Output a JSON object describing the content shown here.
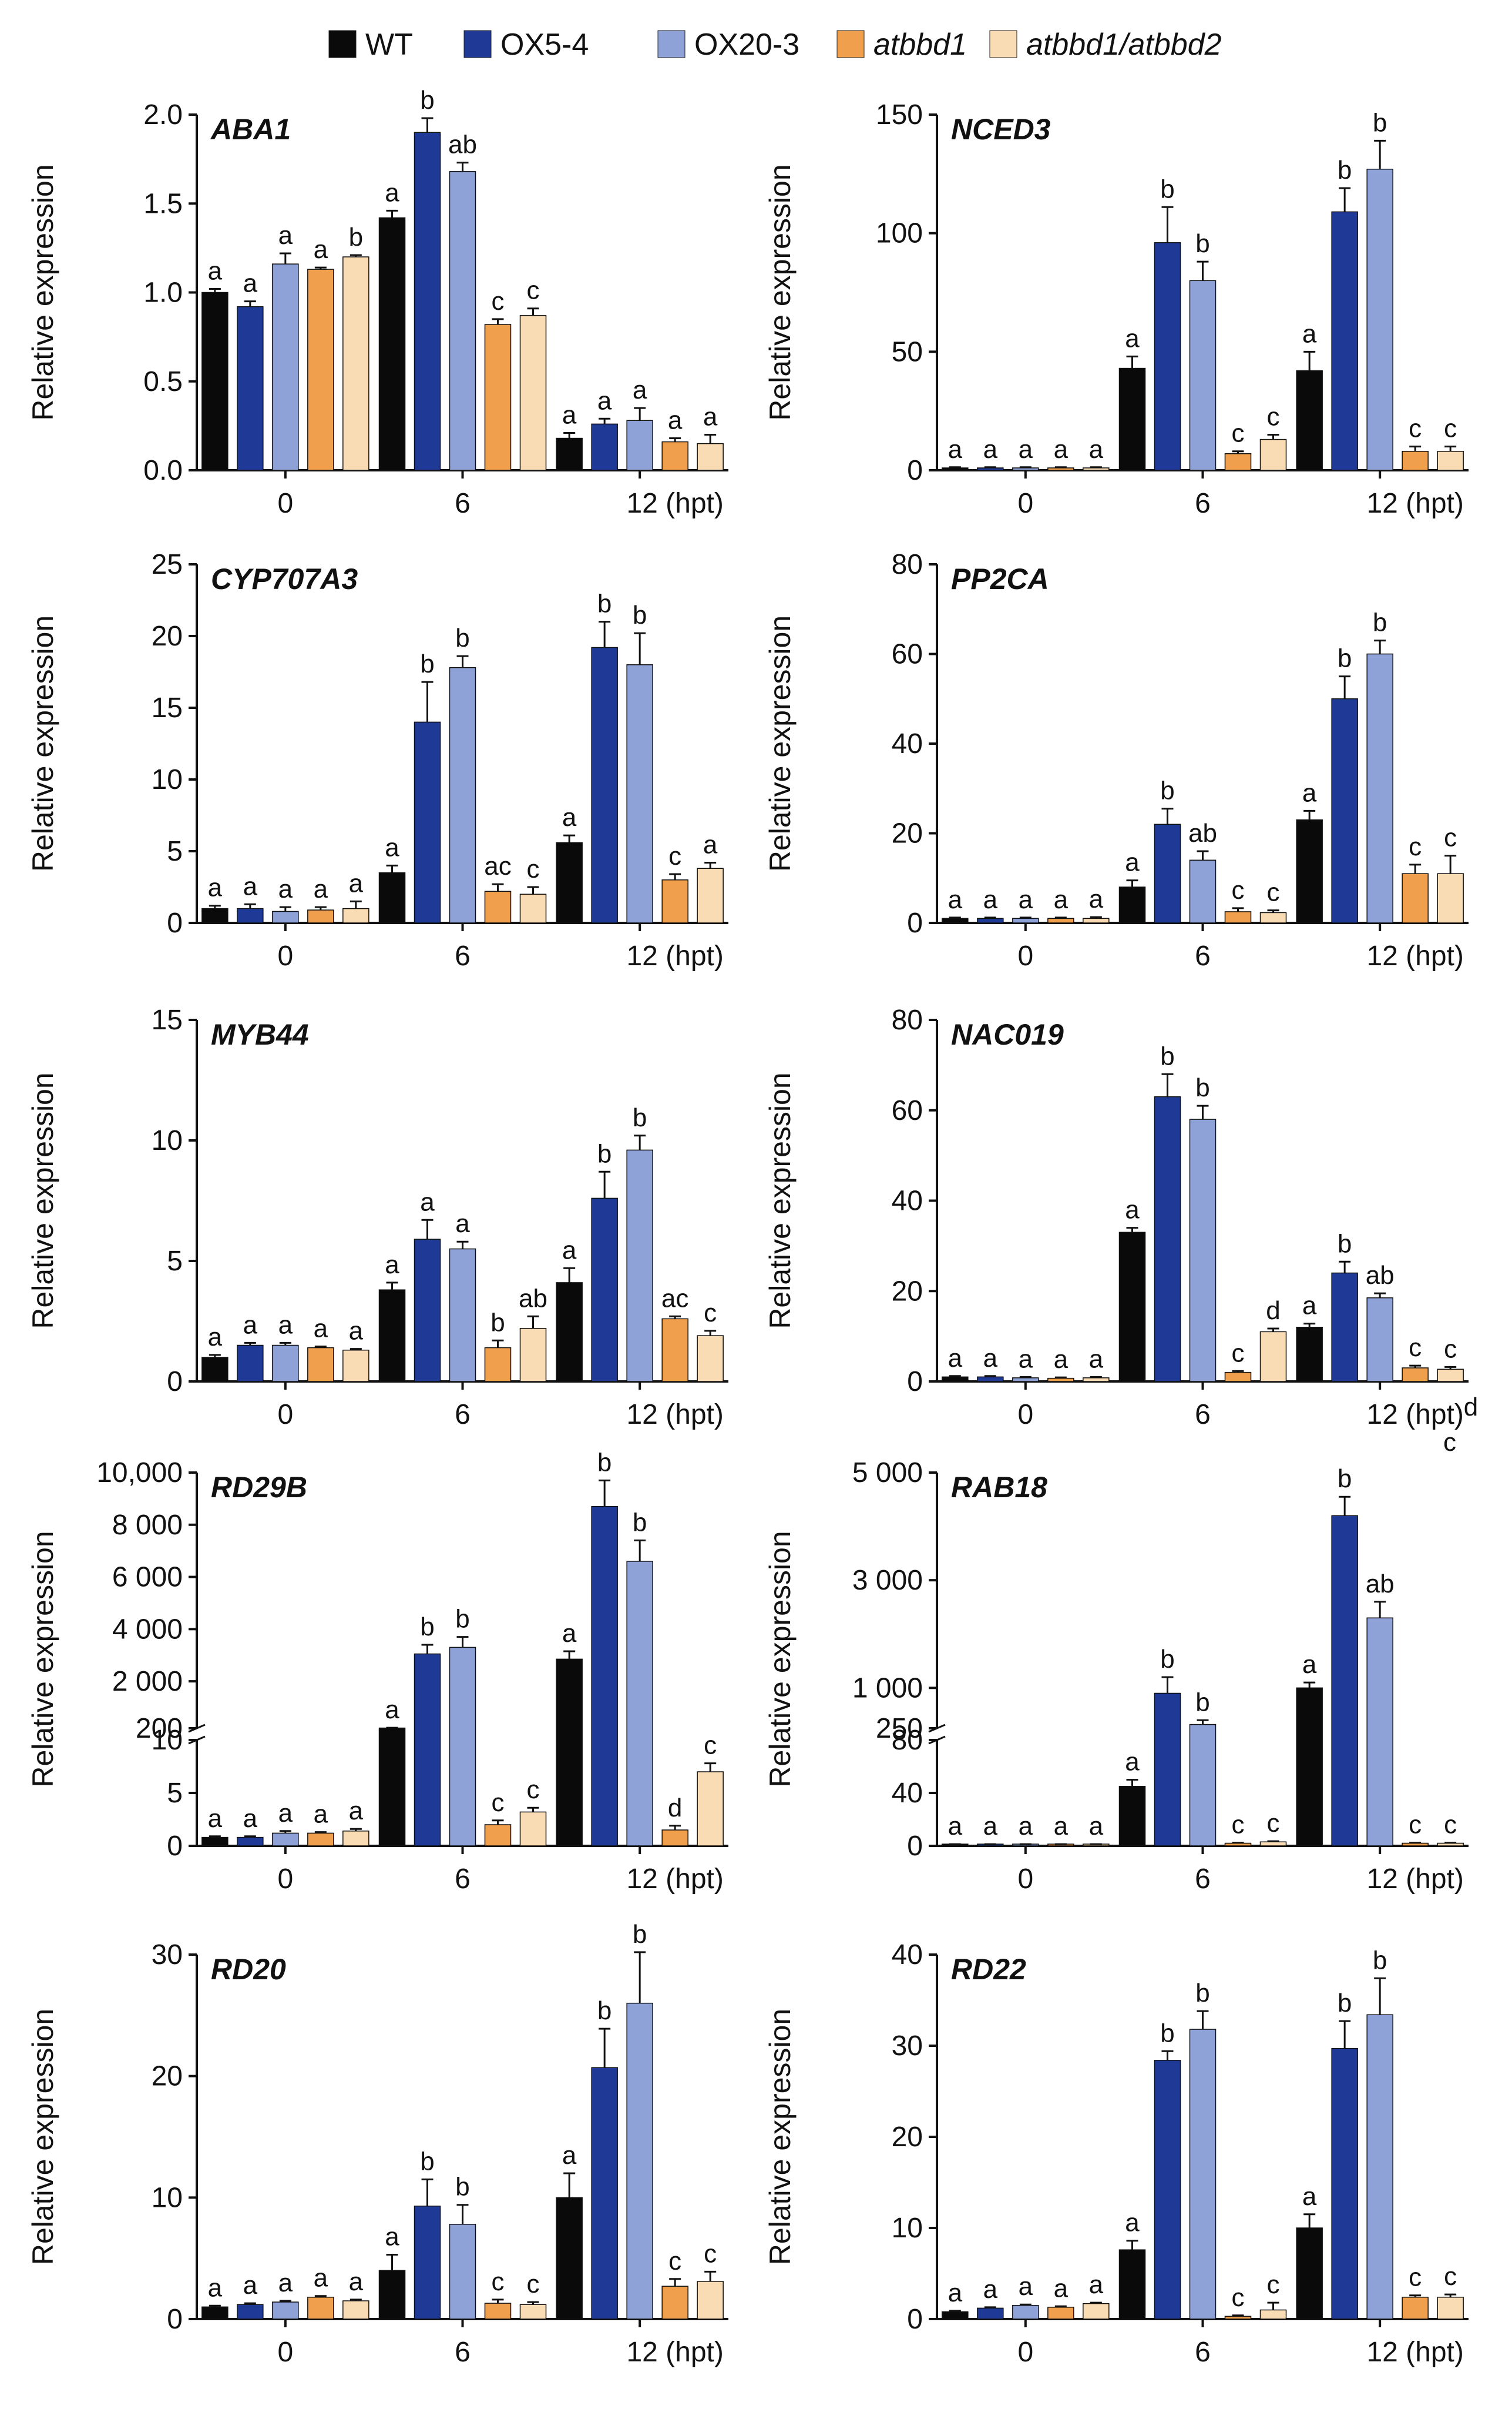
{
  "legend": [
    {
      "name": "WT",
      "color": "#0a0a0a",
      "italic": false
    },
    {
      "name": "OX5-4",
      "color": "#1f3a96",
      "italic": false
    },
    {
      "name": "OX20-3",
      "color": "#8ea2d8",
      "italic": false
    },
    {
      "name": "atbbd1",
      "color": "#f0a04c",
      "italic": true
    },
    {
      "name": "atbbd1/atbbd2",
      "color": "#f9dcb4",
      "italic": true
    }
  ],
  "chart_data": [
    {
      "type": "bar",
      "title": "ABA1",
      "ylabel": "Relative expression",
      "categories": [
        "0",
        "6",
        "12 (hpt)"
      ],
      "ylim": [
        0,
        2.0
      ],
      "yticks": [
        "0.0",
        "0.5",
        "1.0",
        "1.5",
        "2.0"
      ],
      "series": [
        {
          "name": "WT",
          "values": [
            1.0,
            1.42,
            0.18
          ],
          "errors": [
            0.02,
            0.04,
            0.03
          ],
          "letters": [
            "a",
            "a",
            "a"
          ]
        },
        {
          "name": "OX5-4",
          "values": [
            0.92,
            1.9,
            0.26
          ],
          "errors": [
            0.03,
            0.08,
            0.03
          ],
          "letters": [
            "a",
            "b",
            "a"
          ]
        },
        {
          "name": "OX20-3",
          "values": [
            1.16,
            1.68,
            0.28
          ],
          "errors": [
            0.06,
            0.05,
            0.07
          ],
          "letters": [
            "a",
            "ab",
            "a"
          ]
        },
        {
          "name": "atbbd1",
          "values": [
            1.13,
            0.82,
            0.16
          ],
          "errors": [
            0.01,
            0.03,
            0.02
          ],
          "letters": [
            "a",
            "c",
            "a"
          ]
        },
        {
          "name": "atbbd1/atbbd2",
          "values": [
            1.2,
            0.87,
            0.15
          ],
          "errors": [
            0.01,
            0.04,
            0.05
          ],
          "letters": [
            "b",
            "c",
            "a"
          ]
        }
      ]
    },
    {
      "type": "bar",
      "title": "NCED3",
      "ylabel": "Relative expression",
      "categories": [
        "0",
        "6",
        "12 (hpt)"
      ],
      "ylim": [
        0,
        150
      ],
      "yticks": [
        "0",
        "50",
        "100",
        "150"
      ],
      "series": [
        {
          "name": "WT",
          "values": [
            1,
            43,
            42
          ],
          "errors": [
            0.3,
            5,
            8
          ],
          "letters": [
            "a",
            "a",
            "a"
          ]
        },
        {
          "name": "OX5-4",
          "values": [
            1,
            96,
            109
          ],
          "errors": [
            0.3,
            15,
            10
          ],
          "letters": [
            "a",
            "b",
            "b"
          ]
        },
        {
          "name": "OX20-3",
          "values": [
            1,
            80,
            127
          ],
          "errors": [
            0.3,
            8,
            12
          ],
          "letters": [
            "a",
            "b",
            "b"
          ]
        },
        {
          "name": "atbbd1",
          "values": [
            1,
            7,
            8
          ],
          "errors": [
            0.3,
            1,
            2
          ],
          "letters": [
            "a",
            "c",
            "c"
          ]
        },
        {
          "name": "atbbd1/atbbd2",
          "values": [
            1,
            13,
            8
          ],
          "errors": [
            0.3,
            2,
            2
          ],
          "letters": [
            "a",
            "c",
            "c"
          ]
        }
      ]
    },
    {
      "type": "bar",
      "title": "CYP707A3",
      "ylabel": "Relative expression",
      "categories": [
        "0",
        "6",
        "12 (hpt)"
      ],
      "ylim": [
        0,
        25
      ],
      "yticks": [
        "0",
        "5",
        "10",
        "15",
        "20",
        "25"
      ],
      "series": [
        {
          "name": "WT",
          "values": [
            1.0,
            3.5,
            5.6
          ],
          "errors": [
            0.2,
            0.5,
            0.5
          ],
          "letters": [
            "a",
            "a",
            "a"
          ]
        },
        {
          "name": "OX5-4",
          "values": [
            1.0,
            14.0,
            19.2
          ],
          "errors": [
            0.3,
            2.8,
            1.8
          ],
          "letters": [
            "a",
            "b",
            "b"
          ]
        },
        {
          "name": "OX20-3",
          "values": [
            0.8,
            17.8,
            18.0
          ],
          "errors": [
            0.3,
            0.8,
            2.2
          ],
          "letters": [
            "a",
            "b",
            "b"
          ]
        },
        {
          "name": "atbbd1",
          "values": [
            0.9,
            2.2,
            3.0
          ],
          "errors": [
            0.2,
            0.5,
            0.4
          ],
          "letters": [
            "a",
            "ac",
            "c"
          ]
        },
        {
          "name": "atbbd1/atbbd2",
          "values": [
            1.0,
            2.0,
            3.8
          ],
          "errors": [
            0.5,
            0.5,
            0.4
          ],
          "letters": [
            "a",
            "c",
            "a"
          ]
        }
      ]
    },
    {
      "type": "bar",
      "title": "PP2CA",
      "ylabel": "Relative expression",
      "categories": [
        "0",
        "6",
        "12 (hpt)"
      ],
      "ylim": [
        0,
        80
      ],
      "yticks": [
        "0",
        "20",
        "40",
        "60",
        "80"
      ],
      "series": [
        {
          "name": "WT",
          "values": [
            1,
            8,
            23
          ],
          "errors": [
            0.2,
            1.5,
            2
          ],
          "letters": [
            "a",
            "a",
            "a"
          ]
        },
        {
          "name": "OX5-4",
          "values": [
            1,
            22,
            50
          ],
          "errors": [
            0.2,
            3.5,
            5
          ],
          "letters": [
            "a",
            "b",
            "b"
          ]
        },
        {
          "name": "OX20-3",
          "values": [
            1,
            14,
            60
          ],
          "errors": [
            0.2,
            2,
            3
          ],
          "letters": [
            "a",
            "ab",
            "b"
          ]
        },
        {
          "name": "atbbd1",
          "values": [
            1,
            2.5,
            11
          ],
          "errors": [
            0.2,
            0.8,
            2
          ],
          "letters": [
            "a",
            "c",
            "c"
          ]
        },
        {
          "name": "atbbd1/atbbd2",
          "values": [
            1,
            2.3,
            11
          ],
          "errors": [
            0.3,
            0.5,
            4
          ],
          "letters": [
            "a",
            "c",
            "c"
          ]
        }
      ]
    },
    {
      "type": "bar",
      "title": "MYB44",
      "ylabel": "Relative expression",
      "categories": [
        "0",
        "6",
        "12 (hpt)"
      ],
      "ylim": [
        0,
        15
      ],
      "yticks": [
        "0",
        "5",
        "10",
        "15"
      ],
      "series": [
        {
          "name": "WT",
          "values": [
            1.0,
            3.8,
            4.1
          ],
          "errors": [
            0.1,
            0.3,
            0.6
          ],
          "letters": [
            "a",
            "a",
            "a"
          ]
        },
        {
          "name": "OX5-4",
          "values": [
            1.5,
            5.9,
            7.6
          ],
          "errors": [
            0.1,
            0.8,
            1.1
          ],
          "letters": [
            "a",
            "a",
            "b"
          ]
        },
        {
          "name": "OX20-3",
          "values": [
            1.5,
            5.5,
            9.6
          ],
          "errors": [
            0.1,
            0.3,
            0.6
          ],
          "letters": [
            "a",
            "a",
            "b"
          ]
        },
        {
          "name": "atbbd1",
          "values": [
            1.4,
            1.4,
            2.6
          ],
          "errors": [
            0.05,
            0.3,
            0.1
          ],
          "letters": [
            "a",
            "b",
            "ac"
          ]
        },
        {
          "name": "atbbd1/atbbd2",
          "values": [
            1.3,
            2.2,
            1.9
          ],
          "errors": [
            0.05,
            0.5,
            0.2
          ],
          "letters": [
            "a",
            "ab",
            "c"
          ]
        }
      ]
    },
    {
      "type": "bar",
      "title": "NAC019",
      "ylabel": "Relative expression",
      "categories": [
        "0",
        "6",
        "12 (hpt)"
      ],
      "ylim": [
        0,
        80
      ],
      "yticks": [
        "0",
        "20",
        "40",
        "60",
        "80"
      ],
      "series": [
        {
          "name": "WT",
          "values": [
            1,
            33,
            12
          ],
          "errors": [
            0.2,
            1,
            0.8
          ],
          "letters": [
            "a",
            "a",
            "a"
          ]
        },
        {
          "name": "OX5-4",
          "values": [
            1,
            63,
            24
          ],
          "errors": [
            0.2,
            5,
            2.5
          ],
          "letters": [
            "a",
            "b",
            "b"
          ]
        },
        {
          "name": "OX20-3",
          "values": [
            0.8,
            58,
            18.5
          ],
          "errors": [
            0.2,
            3,
            1
          ],
          "letters": [
            "a",
            "b",
            "ab"
          ]
        },
        {
          "name": "atbbd1",
          "values": [
            0.7,
            2,
            3
          ],
          "errors": [
            0.2,
            0.3,
            0.5
          ],
          "letters": [
            "a",
            "c",
            "c"
          ]
        },
        {
          "name": "atbbd1/atbbd2",
          "values": [
            0.8,
            11,
            2.7
          ],
          "errors": [
            0.2,
            0.7,
            0.5
          ],
          "letters": [
            "a",
            "d",
            "c"
          ]
        }
      ],
      "annotations": [
        "c",
        "d"
      ]
    },
    {
      "type": "bar",
      "title": "RD29B",
      "ylabel": "Relative expression",
      "categories": [
        "0",
        "6",
        "12 (hpt)"
      ],
      "broken_axis": true,
      "ylim_lower": [
        0,
        10
      ],
      "yticks_lower": [
        "0",
        "5",
        "10"
      ],
      "ylim_upper": [
        200,
        10000
      ],
      "yticks_upper": [
        "200",
        "2 000",
        "4 000",
        "6 000",
        "8 000",
        "10,000"
      ],
      "series": [
        {
          "name": "WT",
          "values": [
            0.8,
            210,
            2850
          ],
          "errors": [
            0.1,
            10,
            300
          ],
          "letters": [
            "a",
            "a",
            "a"
          ]
        },
        {
          "name": "OX5-4",
          "values": [
            0.8,
            3050,
            8700
          ],
          "errors": [
            0.1,
            350,
            1000
          ],
          "letters": [
            "a",
            "b",
            "b"
          ]
        },
        {
          "name": "OX20-3",
          "values": [
            1.2,
            3300,
            6600
          ],
          "errors": [
            0.2,
            400,
            800
          ],
          "letters": [
            "a",
            "b",
            "b"
          ]
        },
        {
          "name": "atbbd1",
          "values": [
            1.2,
            2.0,
            1.5
          ],
          "errors": [
            0.1,
            0.4,
            0.4
          ],
          "letters": [
            "a",
            "c",
            "d"
          ]
        },
        {
          "name": "atbbd1/atbbd2",
          "values": [
            1.4,
            3.2,
            7.0
          ],
          "errors": [
            0.2,
            0.4,
            0.8
          ],
          "letters": [
            "a",
            "c",
            "c"
          ]
        }
      ]
    },
    {
      "type": "bar",
      "title": "RAB18",
      "ylabel": "Relative expression",
      "categories": [
        "0",
        "6",
        "12 (hpt)"
      ],
      "broken_axis": true,
      "ylim_lower": [
        0,
        80
      ],
      "yticks_lower": [
        "0",
        "40",
        "80"
      ],
      "ylim_upper": [
        250,
        5000
      ],
      "yticks_upper": [
        "250",
        "1 000",
        "3 000",
        "5 000"
      ],
      "series": [
        {
          "name": "WT",
          "values": [
            1,
            45,
            1000
          ],
          "errors": [
            0.3,
            5,
            100
          ],
          "letters": [
            "a",
            "a",
            "a"
          ]
        },
        {
          "name": "OX5-4",
          "values": [
            1,
            900,
            4200
          ],
          "errors": [
            0.3,
            300,
            350
          ],
          "letters": [
            "a",
            "b",
            "b"
          ]
        },
        {
          "name": "OX20-3",
          "values": [
            1,
            320,
            2300
          ],
          "errors": [
            0.3,
            80,
            300
          ],
          "letters": [
            "a",
            "b",
            "ab"
          ]
        },
        {
          "name": "atbbd1",
          "values": [
            1,
            2,
            2
          ],
          "errors": [
            0.3,
            0.4,
            0.4
          ],
          "letters": [
            "a",
            "c",
            "c"
          ]
        },
        {
          "name": "atbbd1/atbbd2",
          "values": [
            1,
            3,
            2
          ],
          "errors": [
            0.3,
            0.5,
            0.4
          ],
          "letters": [
            "a",
            "c",
            "c"
          ]
        }
      ]
    },
    {
      "type": "bar",
      "title": "RD20",
      "ylabel": "Relative expression",
      "categories": [
        "0",
        "6",
        "12 (hpt)"
      ],
      "ylim": [
        0,
        30
      ],
      "yticks": [
        "0",
        "10",
        "20",
        "30"
      ],
      "series": [
        {
          "name": "WT",
          "values": [
            1.0,
            4.0,
            10.0
          ],
          "errors": [
            0.1,
            1.3,
            2.0
          ],
          "letters": [
            "a",
            "a",
            "a"
          ]
        },
        {
          "name": "OX5-4",
          "values": [
            1.2,
            9.3,
            20.7
          ],
          "errors": [
            0.1,
            2.2,
            3.2
          ],
          "letters": [
            "a",
            "b",
            "b"
          ]
        },
        {
          "name": "OX20-3",
          "values": [
            1.4,
            7.8,
            26.0
          ],
          "errors": [
            0.1,
            1.6,
            4.2
          ],
          "letters": [
            "a",
            "b",
            "b"
          ]
        },
        {
          "name": "atbbd1",
          "values": [
            1.8,
            1.3,
            2.7
          ],
          "errors": [
            0.1,
            0.3,
            0.6
          ],
          "letters": [
            "a",
            "c",
            "c"
          ]
        },
        {
          "name": "atbbd1/atbbd2",
          "values": [
            1.5,
            1.2,
            3.1
          ],
          "errors": [
            0.1,
            0.2,
            0.8
          ],
          "letters": [
            "a",
            "c",
            "c"
          ]
        }
      ]
    },
    {
      "type": "bar",
      "title": "RD22",
      "ylabel": "Relative expression",
      "categories": [
        "0",
        "6",
        "12 (hpt)"
      ],
      "ylim": [
        0,
        40
      ],
      "yticks": [
        "0",
        "10",
        "20",
        "30",
        "40"
      ],
      "series": [
        {
          "name": "WT",
          "values": [
            0.8,
            7.6,
            10.0
          ],
          "errors": [
            0.1,
            1.0,
            1.5
          ],
          "letters": [
            "a",
            "a",
            "a"
          ]
        },
        {
          "name": "OX5-4",
          "values": [
            1.2,
            28.4,
            29.7
          ],
          "errors": [
            0.1,
            1.0,
            3.0
          ],
          "letters": [
            "a",
            "b",
            "b"
          ]
        },
        {
          "name": "OX20-3",
          "values": [
            1.5,
            31.8,
            33.4
          ],
          "errors": [
            0.1,
            2.0,
            4.0
          ],
          "letters": [
            "a",
            "b",
            "b"
          ]
        },
        {
          "name": "atbbd1",
          "values": [
            1.3,
            0.3,
            2.4
          ],
          "errors": [
            0.1,
            0.1,
            0.2
          ],
          "letters": [
            "a",
            "c",
            "c"
          ]
        },
        {
          "name": "atbbd1/atbbd2",
          "values": [
            1.7,
            1.0,
            2.4
          ],
          "errors": [
            0.1,
            0.8,
            0.3
          ],
          "letters": [
            "a",
            "c",
            "c"
          ]
        }
      ]
    }
  ]
}
